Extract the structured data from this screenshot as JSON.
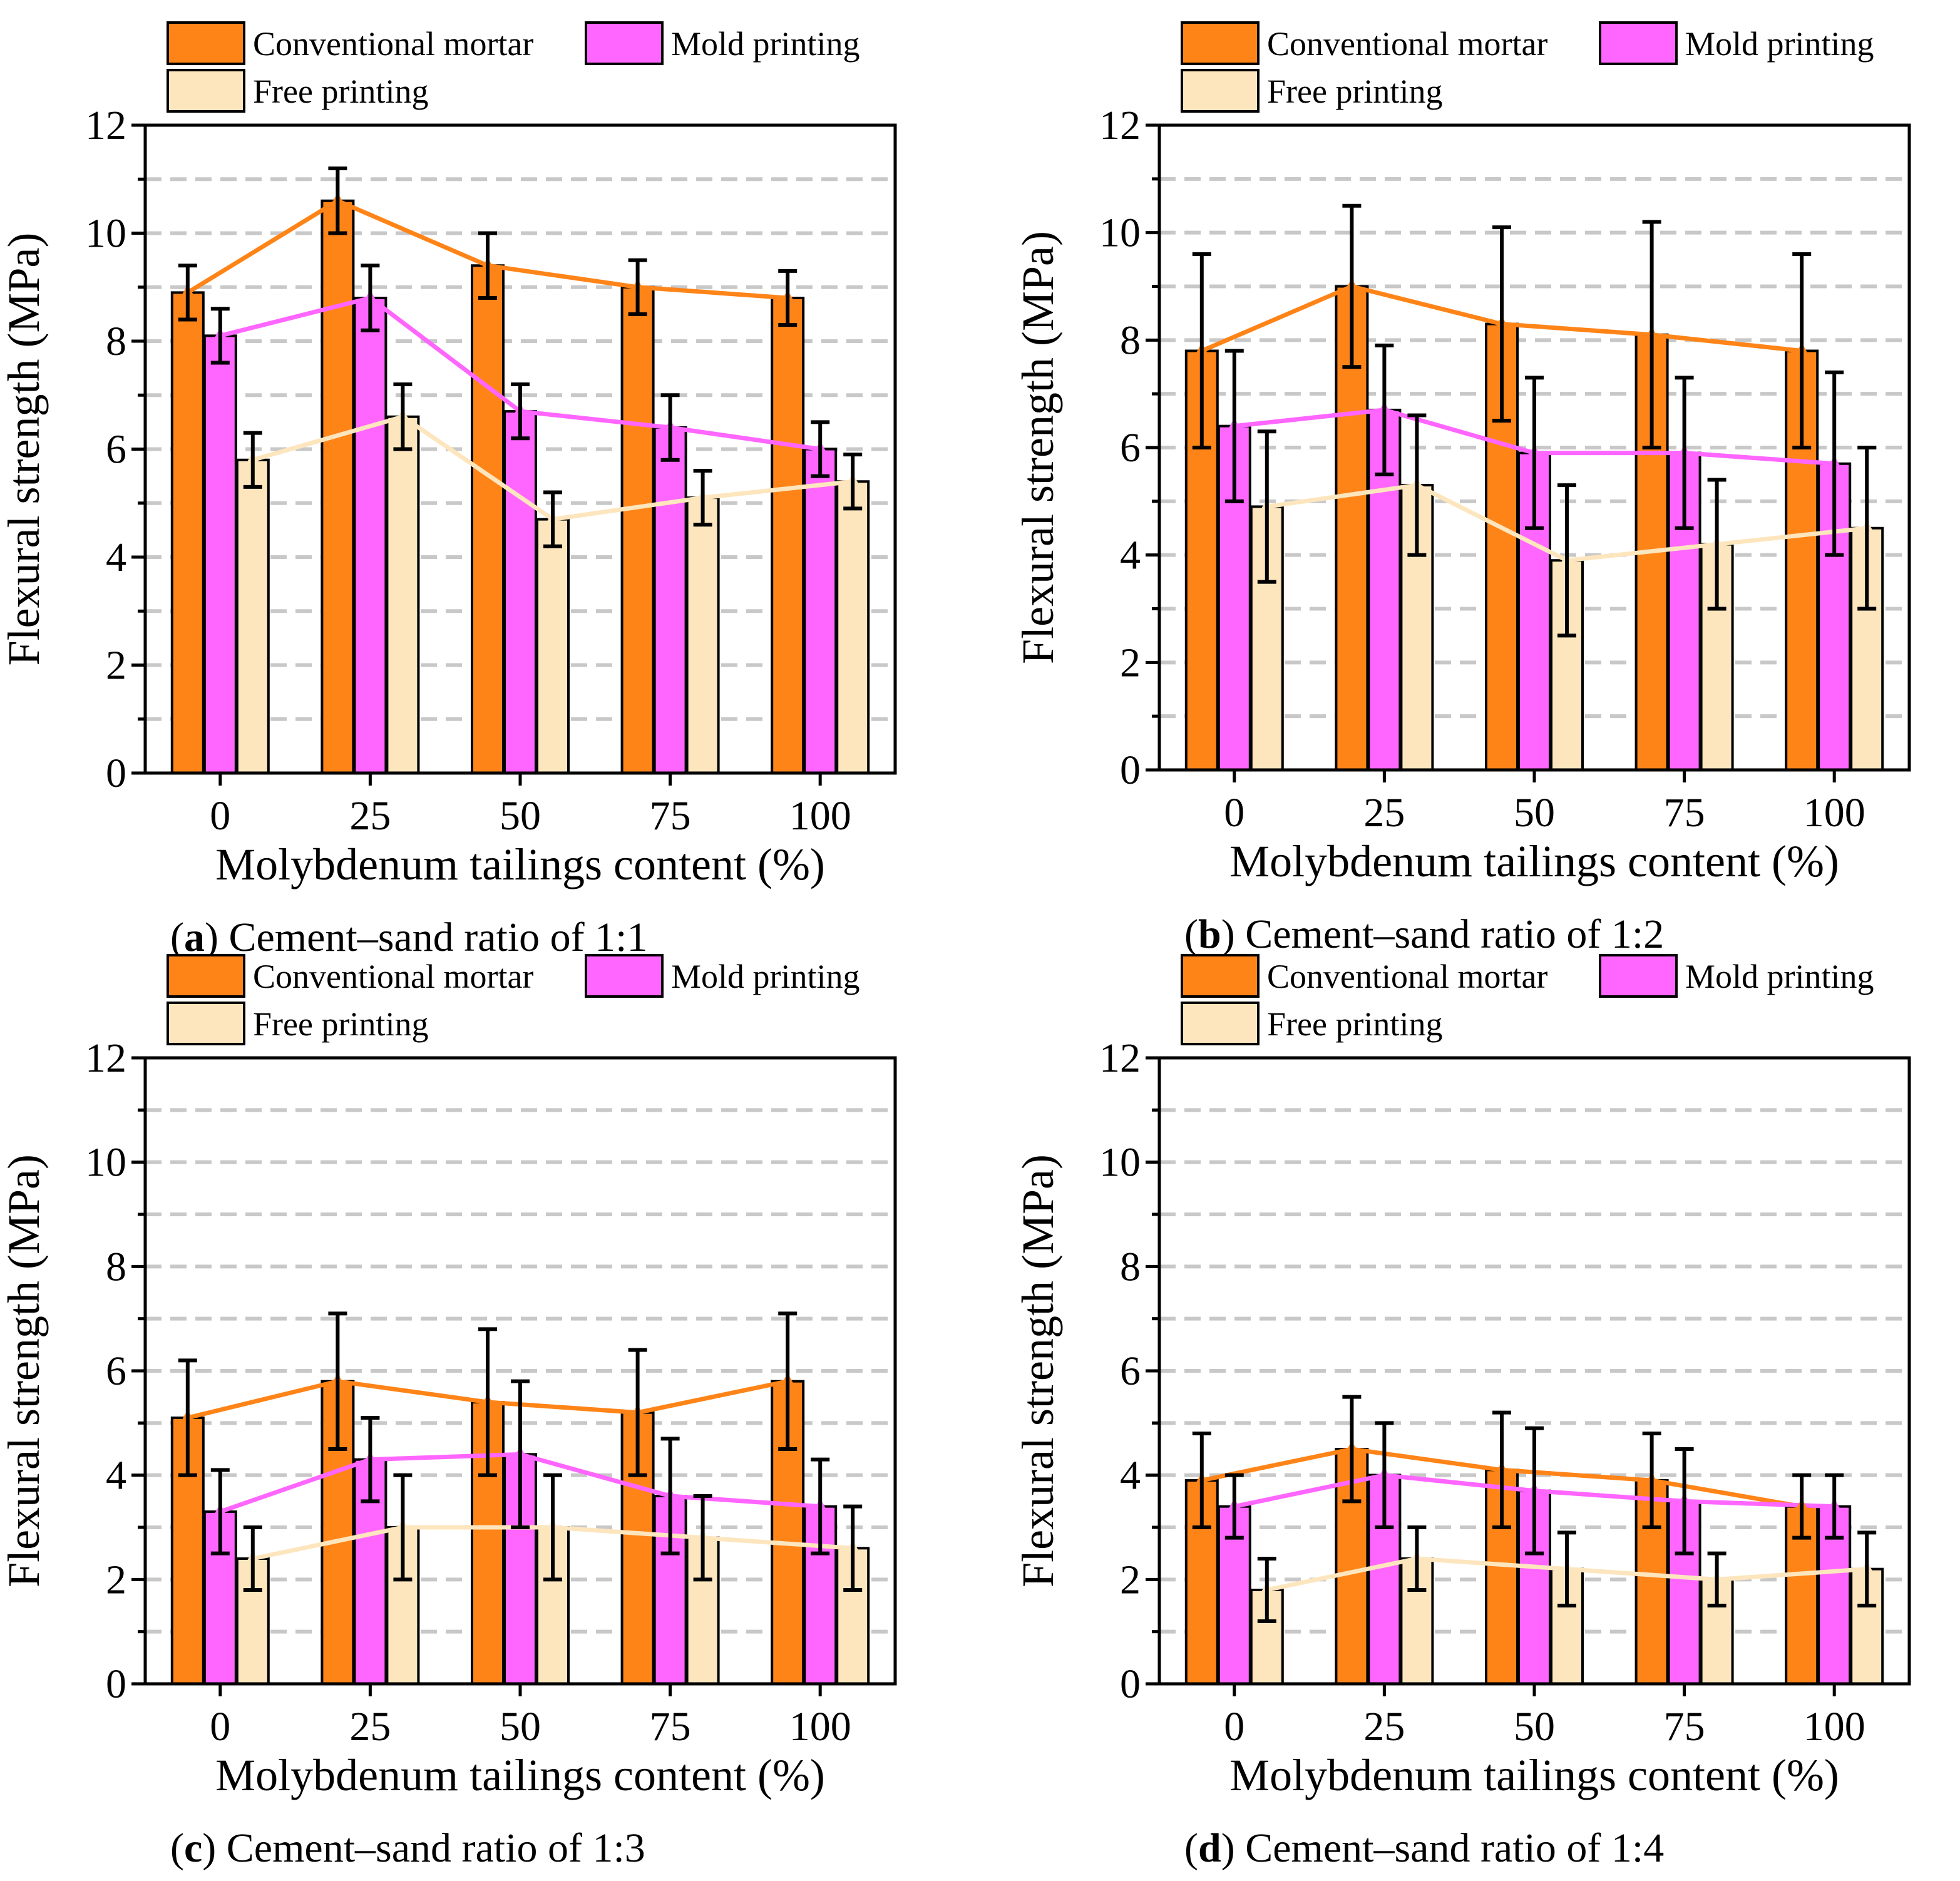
{
  "legend": {
    "conventional": "Conventional mortar",
    "mold": "Mold printing",
    "free": "Free printing"
  },
  "colors": {
    "conventional": "#FF8418",
    "mold": "#FF66FF",
    "free": "#FDE6BE",
    "grid": "#C8C8C8"
  },
  "chart_data": [
    {
      "type": "bar",
      "panel_label": "a",
      "caption": "Cement–sand ratio of 1:1",
      "xlabel": "Molybdenum tailings content (%)",
      "ylabel": "Flexural strength (MPa)",
      "categories": [
        "0",
        "25",
        "50",
        "75",
        "100"
      ],
      "ylim": [
        0,
        12
      ],
      "yticks": [
        "0",
        "2",
        "4",
        "6",
        "8",
        "10",
        "12"
      ],
      "grid": true,
      "legend_position": "top",
      "series": [
        {
          "name": "Conventional mortar",
          "values": [
            8.9,
            10.6,
            9.4,
            9.0,
            8.8
          ],
          "errors": [
            0.5,
            0.6,
            0.6,
            0.5,
            0.5
          ]
        },
        {
          "name": "Mold printing",
          "values": [
            8.1,
            8.8,
            6.7,
            6.4,
            6.0
          ],
          "errors": [
            0.5,
            0.6,
            0.5,
            0.6,
            0.5
          ]
        },
        {
          "name": "Free printing",
          "values": [
            5.8,
            6.6,
            4.7,
            5.1,
            5.4
          ],
          "errors": [
            0.5,
            0.6,
            0.5,
            0.5,
            0.5
          ]
        }
      ]
    },
    {
      "type": "bar",
      "panel_label": "b",
      "caption": "Cement–sand ratio of 1:2",
      "xlabel": "Molybdenum tailings content (%)",
      "ylabel": "Flexural strength (MPa)",
      "categories": [
        "0",
        "25",
        "50",
        "75",
        "100"
      ],
      "ylim": [
        0,
        12
      ],
      "yticks": [
        "0",
        "2",
        "4",
        "6",
        "8",
        "10",
        "12"
      ],
      "grid": true,
      "legend_position": "top",
      "series": [
        {
          "name": "Conventional mortar",
          "values": [
            7.8,
            9.0,
            8.3,
            8.1,
            7.8
          ],
          "errors": [
            1.8,
            1.5,
            1.8,
            2.1,
            1.8
          ]
        },
        {
          "name": "Mold printing",
          "values": [
            6.4,
            6.7,
            5.9,
            5.9,
            5.7
          ],
          "errors": [
            1.4,
            1.2,
            1.4,
            1.4,
            1.7
          ]
        },
        {
          "name": "Free printing",
          "values": [
            4.9,
            5.3,
            3.9,
            4.2,
            4.5
          ],
          "errors": [
            1.4,
            1.3,
            1.4,
            1.2,
            1.5
          ]
        }
      ]
    },
    {
      "type": "bar",
      "panel_label": "c",
      "caption": "Cement–sand ratio of 1:3",
      "xlabel": "Molybdenum tailings content (%)",
      "ylabel": "Flexural strength (MPa)",
      "categories": [
        "0",
        "25",
        "50",
        "75",
        "100"
      ],
      "ylim": [
        0,
        12
      ],
      "yticks": [
        "0",
        "2",
        "4",
        "6",
        "8",
        "10",
        "12"
      ],
      "grid": true,
      "legend_position": "top",
      "series": [
        {
          "name": "Conventional mortar",
          "values": [
            5.1,
            5.8,
            5.4,
            5.2,
            5.8
          ],
          "errors": [
            1.1,
            1.3,
            1.4,
            1.2,
            1.3
          ]
        },
        {
          "name": "Mold printing",
          "values": [
            3.3,
            4.3,
            4.4,
            3.6,
            3.4
          ],
          "errors": [
            0.8,
            0.8,
            1.4,
            1.1,
            0.9
          ]
        },
        {
          "name": "Free printing",
          "values": [
            2.4,
            3.0,
            3.0,
            2.8,
            2.6
          ],
          "errors": [
            0.6,
            1.0,
            1.0,
            0.8,
            0.8
          ]
        }
      ]
    },
    {
      "type": "bar",
      "panel_label": "d",
      "caption": "Cement–sand ratio of 1:4",
      "xlabel": "Molybdenum tailings content (%)",
      "ylabel": "Flexural strength (MPa)",
      "categories": [
        "0",
        "25",
        "50",
        "75",
        "100"
      ],
      "ylim": [
        0,
        12
      ],
      "yticks": [
        "0",
        "2",
        "4",
        "6",
        "8",
        "10",
        "12"
      ],
      "grid": true,
      "legend_position": "top",
      "series": [
        {
          "name": "Conventional mortar",
          "values": [
            3.9,
            4.5,
            4.1,
            3.9,
            3.4
          ],
          "errors": [
            0.9,
            1.0,
            1.1,
            0.9,
            0.6
          ]
        },
        {
          "name": "Mold printing",
          "values": [
            3.4,
            4.0,
            3.7,
            3.5,
            3.4
          ],
          "errors": [
            0.6,
            1.0,
            1.2,
            1.0,
            0.6
          ]
        },
        {
          "name": "Free printing",
          "values": [
            1.8,
            2.4,
            2.2,
            2.0,
            2.2
          ],
          "errors": [
            0.6,
            0.6,
            0.7,
            0.5,
            0.7
          ]
        }
      ]
    }
  ]
}
